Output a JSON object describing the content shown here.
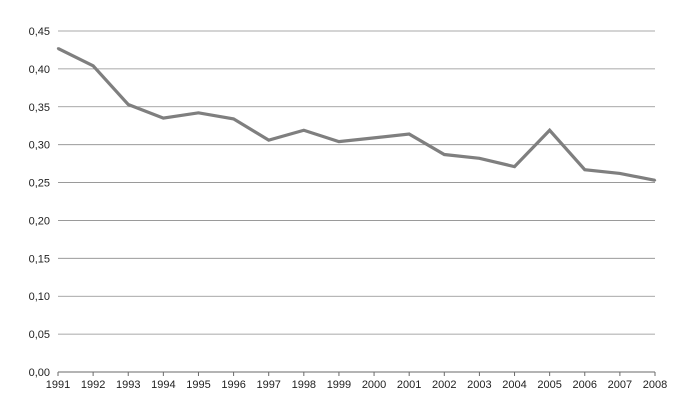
{
  "chart_data": {
    "type": "line",
    "title": "",
    "xlabel": "",
    "ylabel": "",
    "x": [
      1991,
      1992,
      1993,
      1994,
      1995,
      1996,
      1997,
      1998,
      1999,
      2000,
      2001,
      2002,
      2003,
      2004,
      2005,
      2006,
      2007,
      2008
    ],
    "x_tick_labels": [
      "1991",
      "1992",
      "1993",
      "1994",
      "1995",
      "1996",
      "1997",
      "1998",
      "1999",
      "2000",
      "2001",
      "2002",
      "2003",
      "2004",
      "2005",
      "2006",
      "2007",
      "2008"
    ],
    "series": [
      {
        "values": [
          0.427,
          0.404,
          0.353,
          0.335,
          0.342,
          0.334,
          0.306,
          0.319,
          0.304,
          0.309,
          0.314,
          0.287,
          0.282,
          0.271,
          0.319,
          0.267,
          0.262,
          0.253
        ],
        "color": "#7f7f7f"
      }
    ],
    "ylim": [
      0,
      0.45
    ],
    "y_ticks": [
      0,
      0.05,
      0.1,
      0.15,
      0.2,
      0.25,
      0.3,
      0.35,
      0.4,
      0.45
    ],
    "y_tick_labels": [
      "0,00",
      "0,05",
      "0,10",
      "0,15",
      "0,20",
      "0,25",
      "0,30",
      "0,35",
      "0,40",
      "0,45"
    ],
    "grid": true,
    "legend": "none"
  }
}
